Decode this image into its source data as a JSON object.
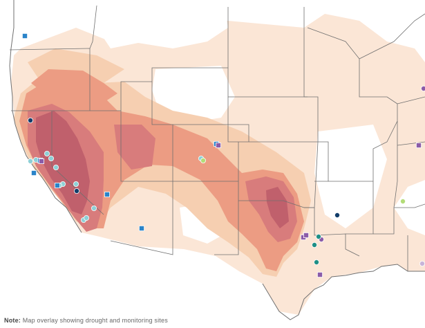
{
  "colors": {
    "background": "#ffffff",
    "water": "#ffffff",
    "land": "#ffffff",
    "boundary": "#6f6f6f",
    "heat_1": "#fbe6d6",
    "heat_2": "#f6cfb1",
    "heat_3": "#ec9c83",
    "heat_4": "#d87c7c",
    "heat_5": "#c0606c",
    "marker_light_blue": "#8ed0d6",
    "marker_dark_navy": "#123d6a",
    "marker_blue_square": "#2a84c9",
    "marker_purple": "#8b5ca8",
    "marker_teal": "#1f8f86",
    "marker_light_green": "#b3dc78",
    "marker_lavender": "#c8b4d8"
  },
  "legend": {
    "title_label": "Note:",
    "text": "Map overlay showing drought and monitoring sites"
  },
  "map": {
    "features": [
      "state-boundaries",
      "coastline",
      "drought-intensity-shading",
      "monitoring-site-markers"
    ]
  }
}
